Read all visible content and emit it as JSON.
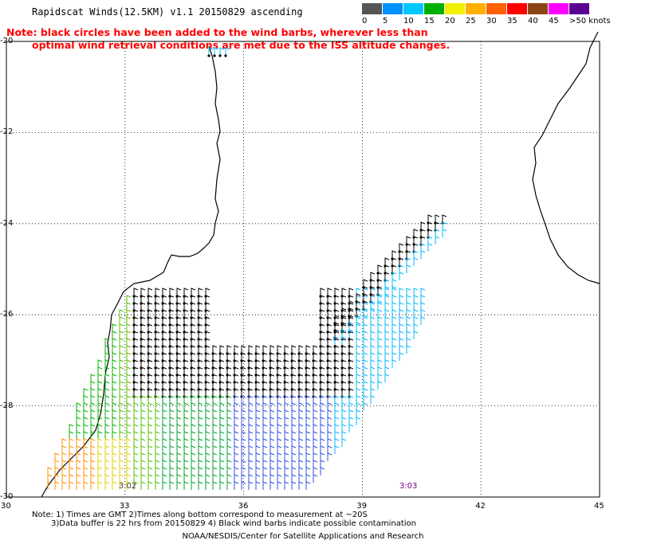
{
  "header": {
    "title": "Rapidscat Winds(12.5KM) v1.1 20150829 ascending",
    "note_line1": "Note: black circles have been added to the wind barbs, wherever less than",
    "note_line2": "optimal wind retrieval conditions are met due to the ISS altitude changes."
  },
  "legend": {
    "items": [
      {
        "label": "0",
        "color": "#555555"
      },
      {
        "label": "5",
        "color": "#0090ff"
      },
      {
        "label": "10",
        "color": "#00c8ff"
      },
      {
        "label": "15",
        "color": "#00b000"
      },
      {
        "label": "20",
        "color": "#f0f000"
      },
      {
        "label": "25",
        "color": "#ffb000"
      },
      {
        "label": "30",
        "color": "#ff6000"
      },
      {
        "label": "35",
        "color": "#ff0000"
      },
      {
        "label": "40",
        "color": "#8b4513"
      },
      {
        "label": "45",
        "color": "#ff00ff"
      },
      {
        "label": ">50 knots",
        "color": "#5a0090"
      }
    ]
  },
  "axes": {
    "x_ticks": [
      "30",
      "33",
      "36",
      "39",
      "42",
      "45"
    ],
    "y_ticks": [
      "-20",
      "-22",
      "-24",
      "-26",
      "-28",
      "-30"
    ],
    "x_range": [
      30,
      45
    ],
    "y_range": [
      -30,
      -20
    ]
  },
  "time_labels": [
    {
      "text": "3:02",
      "lon": 33.0,
      "lat": -29.8,
      "color": "#404040"
    },
    {
      "text": "3:03",
      "lon": 40.1,
      "lat": -29.8,
      "color": "#800080"
    }
  ],
  "footer": {
    "line1": "Note: 1) Times are GMT 2)Times along bottom correspond to measurement at ~20S",
    "line2": "3)Data buffer is 22 hrs from 20150829 4) Black wind barbs indicate possible contamination",
    "credit": "NOAA/NESDIS/Center for Satellite Applications and Research"
  }
}
